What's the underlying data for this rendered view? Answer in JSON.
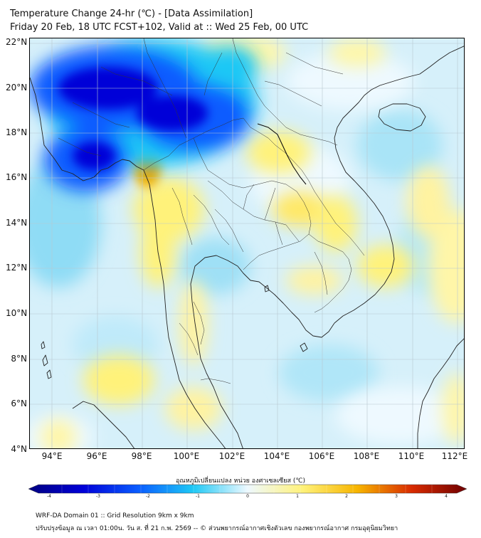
{
  "title": {
    "line1": "Temperature Change 24-hr (℃) - [Data Assimilation]",
    "line2": "Friday 20 Feb, 18 UTC FCST+102, Valid at :: Wed 25 Feb, 00 UTC"
  },
  "map": {
    "region": "Mainland Southeast Asia",
    "lat_labels": [
      "22°N",
      "20°N",
      "18°N",
      "16°N",
      "14°N",
      "12°N",
      "10°N",
      "8°N",
      "6°N",
      "4°N"
    ],
    "lon_labels": [
      "94°E",
      "96°E",
      "98°E",
      "100°E",
      "102°E",
      "104°E",
      "106°E",
      "108°E",
      "110°E",
      "112°E"
    ]
  },
  "colorbar": {
    "title": "อุณหภูมิเปลี่ยนแปลง หน่วย องศาเซลเซียส (℃)",
    "ticks": [
      "-4",
      "-3",
      "-2",
      "-1",
      "0",
      "1",
      "2",
      "3",
      "4"
    ],
    "range": [
      -4,
      4
    ],
    "colors": {
      "neg4": "#000080",
      "neg3": "#0000d8",
      "neg2": "#0a5cff",
      "neg1": "#1ec8f5",
      "zero": "#eef9ff",
      "pos1": "#fff27a",
      "pos2": "#f7b500",
      "pos3": "#d82a00",
      "pos4": "#6e0000"
    }
  },
  "footer": {
    "line1": "WRF-DA Domain 01 :: Grid Resolution 9km x 9km",
    "line2": "ปรับปรุงข้อมูล ณ เวลา 01:00น. วัน ส. ที่ 21 ก.พ. 2569 -- © ส่วนพยากรณ์อากาศเชิงตัวเลข กองพยากรณ์อากาศ กรมอุตุนิยมวิทยา"
  }
}
